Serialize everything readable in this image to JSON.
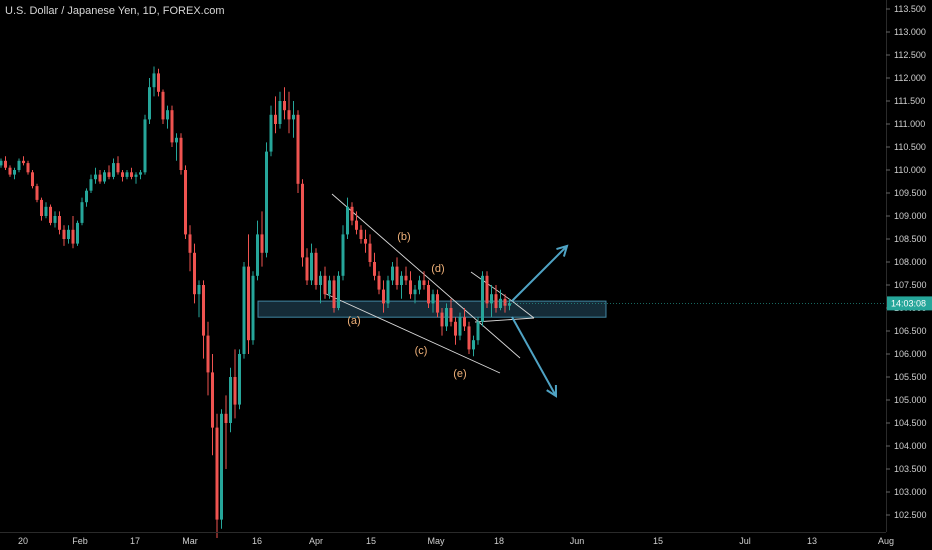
{
  "symbol_title": "U.S. Dollar / Japanese Yen, 1D, FOREX.com",
  "current_price_label": "14:03:08",
  "colors": {
    "background": "#000000",
    "up": "#26a69a",
    "down": "#ef5350",
    "trendline": "#d9d9d9",
    "arrow": "#4fa3c4",
    "zone_fill": "#1c3a4a",
    "zone_stroke": "#4fa3c4",
    "wave_label": "#f0b27a",
    "price_tag": "#26a69a"
  },
  "chart_data": {
    "type": "candlestick",
    "title": "U.S. Dollar / Japanese Yen, 1D, FOREX.com",
    "ylim": [
      102.2,
      113.7
    ],
    "y_ticks": [
      "113.500",
      "113.000",
      "112.500",
      "112.000",
      "111.500",
      "111.000",
      "110.500",
      "110.000",
      "109.500",
      "109.000",
      "108.500",
      "108.000",
      "107.500",
      "107.000",
      "106.500",
      "106.000",
      "105.500",
      "105.000",
      "104.500",
      "104.000",
      "103.500",
      "103.000",
      "102.500"
    ],
    "x_ticks": [
      "20",
      "Feb",
      "17",
      "Mar",
      "16",
      "Apr",
      "15",
      "May",
      "18",
      "Jun",
      "15",
      "Jul",
      "13",
      "Aug"
    ],
    "wave_labels": [
      "(a)",
      "(b)",
      "(c)",
      "(d)",
      "(e)"
    ],
    "support_zone": [
      106.8,
      107.15
    ],
    "candles": [
      [
        110.1,
        110.25,
        110.05,
        110.2
      ],
      [
        110.2,
        110.3,
        110.0,
        110.05
      ],
      [
        110.05,
        110.1,
        109.85,
        109.9
      ],
      [
        109.9,
        110.05,
        109.8,
        110.0
      ],
      [
        110.0,
        110.25,
        109.95,
        110.2
      ],
      [
        110.2,
        110.3,
        110.1,
        110.15
      ],
      [
        110.15,
        110.2,
        109.9,
        109.95
      ],
      [
        109.95,
        110.0,
        109.6,
        109.65
      ],
      [
        109.65,
        109.7,
        109.3,
        109.35
      ],
      [
        109.35,
        109.4,
        108.9,
        109.0
      ],
      [
        109.0,
        109.3,
        108.95,
        109.2
      ],
      [
        109.2,
        109.25,
        108.8,
        108.85
      ],
      [
        108.85,
        109.1,
        108.75,
        109.0
      ],
      [
        109.0,
        109.1,
        108.6,
        108.7
      ],
      [
        108.7,
        108.8,
        108.35,
        108.5
      ],
      [
        108.5,
        108.8,
        108.4,
        108.7
      ],
      [
        108.7,
        109.0,
        108.3,
        108.4
      ],
      [
        108.4,
        108.9,
        108.35,
        108.85
      ],
      [
        108.85,
        109.4,
        108.8,
        109.3
      ],
      [
        109.3,
        109.6,
        109.2,
        109.55
      ],
      [
        109.55,
        109.9,
        109.5,
        109.8
      ],
      [
        109.8,
        110.05,
        109.7,
        109.9
      ],
      [
        109.9,
        110.0,
        109.7,
        109.75
      ],
      [
        109.75,
        110.0,
        109.7,
        109.95
      ],
      [
        109.95,
        110.1,
        109.8,
        109.85
      ],
      [
        109.85,
        110.25,
        109.8,
        110.15
      ],
      [
        110.15,
        110.3,
        109.9,
        109.95
      ],
      [
        109.95,
        110.0,
        109.75,
        109.85
      ],
      [
        109.85,
        110.0,
        109.8,
        109.95
      ],
      [
        109.95,
        110.05,
        109.8,
        109.85
      ],
      [
        109.85,
        109.95,
        109.7,
        109.9
      ],
      [
        109.9,
        110.0,
        109.8,
        109.95
      ],
      [
        109.95,
        111.2,
        109.9,
        111.1
      ],
      [
        111.1,
        112.0,
        111.0,
        111.8
      ],
      [
        111.8,
        112.25,
        111.6,
        112.1
      ],
      [
        112.1,
        112.2,
        111.6,
        111.7
      ],
      [
        111.7,
        111.75,
        111.0,
        111.1
      ],
      [
        111.1,
        111.4,
        110.9,
        111.3
      ],
      [
        111.3,
        111.4,
        110.5,
        110.6
      ],
      [
        110.6,
        110.8,
        110.2,
        110.7
      ],
      [
        110.7,
        110.8,
        109.9,
        110.0
      ],
      [
        110.0,
        110.1,
        108.5,
        108.6
      ],
      [
        108.6,
        108.8,
        107.8,
        108.2
      ],
      [
        108.2,
        108.4,
        107.1,
        107.3
      ],
      [
        107.3,
        107.6,
        106.8,
        107.5
      ],
      [
        107.5,
        107.6,
        105.9,
        106.4
      ],
      [
        106.4,
        106.7,
        105.1,
        105.6
      ],
      [
        105.6,
        106.0,
        103.8,
        104.4
      ],
      [
        104.4,
        104.7,
        102.0,
        102.4
      ],
      [
        102.4,
        104.8,
        102.2,
        104.7
      ],
      [
        104.7,
        105.1,
        103.5,
        104.5
      ],
      [
        104.5,
        105.7,
        104.3,
        105.5
      ],
      [
        105.5,
        106.1,
        104.6,
        104.9
      ],
      [
        104.9,
        106.1,
        104.8,
        106.0
      ],
      [
        106.0,
        108.0,
        105.9,
        107.9
      ],
      [
        107.9,
        108.6,
        106.0,
        106.3
      ],
      [
        106.3,
        107.8,
        106.2,
        107.7
      ],
      [
        107.7,
        108.9,
        107.6,
        108.6
      ],
      [
        108.6,
        109.1,
        107.9,
        108.2
      ],
      [
        108.2,
        110.6,
        108.1,
        110.4
      ],
      [
        110.4,
        111.4,
        110.3,
        111.2
      ],
      [
        111.2,
        111.6,
        110.8,
        111.0
      ],
      [
        111.0,
        111.7,
        110.9,
        111.5
      ],
      [
        111.5,
        111.8,
        111.1,
        111.3
      ],
      [
        111.3,
        111.7,
        110.8,
        111.1
      ],
      [
        111.1,
        111.5,
        110.7,
        111.2
      ],
      [
        111.2,
        111.3,
        109.5,
        109.7
      ],
      [
        109.7,
        109.8,
        107.9,
        108.1
      ],
      [
        108.1,
        108.3,
        107.5,
        107.6
      ],
      [
        107.6,
        108.4,
        107.5,
        108.2
      ],
      [
        108.2,
        108.3,
        107.4,
        107.5
      ],
      [
        107.5,
        107.8,
        107.1,
        107.7
      ],
      [
        107.7,
        107.9,
        107.2,
        107.3
      ],
      [
        107.3,
        107.7,
        107.2,
        107.6
      ],
      [
        107.6,
        107.7,
        106.9,
        107.0
      ],
      [
        107.0,
        107.8,
        106.95,
        107.7
      ],
      [
        107.7,
        108.8,
        107.6,
        108.6
      ],
      [
        108.6,
        109.4,
        108.5,
        109.2
      ],
      [
        109.2,
        109.3,
        108.8,
        108.9
      ],
      [
        108.9,
        109.1,
        108.6,
        108.7
      ],
      [
        108.7,
        108.8,
        108.4,
        108.5
      ],
      [
        108.5,
        108.7,
        108.2,
        108.4
      ],
      [
        108.4,
        108.6,
        107.9,
        108.0
      ],
      [
        108.0,
        108.2,
        107.6,
        107.7
      ],
      [
        107.7,
        107.8,
        107.3,
        107.4
      ],
      [
        107.4,
        107.6,
        106.9,
        107.1
      ],
      [
        107.1,
        107.7,
        107.0,
        107.6
      ],
      [
        107.6,
        108.0,
        107.5,
        107.9
      ],
      [
        107.9,
        108.1,
        107.4,
        107.5
      ],
      [
        107.5,
        107.8,
        107.2,
        107.7
      ],
      [
        107.7,
        107.9,
        107.5,
        107.6
      ],
      [
        107.6,
        107.8,
        107.2,
        107.3
      ],
      [
        107.3,
        107.5,
        107.1,
        107.4
      ],
      [
        107.4,
        107.7,
        107.3,
        107.6
      ],
      [
        107.6,
        107.8,
        107.4,
        107.5
      ],
      [
        107.5,
        107.6,
        107.0,
        107.1
      ],
      [
        107.1,
        107.4,
        106.9,
        107.3
      ],
      [
        107.3,
        107.4,
        106.8,
        106.9
      ],
      [
        106.9,
        107.0,
        106.4,
        106.6
      ],
      [
        106.6,
        107.1,
        106.5,
        107.0
      ],
      [
        107.0,
        107.2,
        106.6,
        106.7
      ],
      [
        106.7,
        106.8,
        106.2,
        106.4
      ],
      [
        106.4,
        106.9,
        106.3,
        106.8
      ],
      [
        106.8,
        107.0,
        106.5,
        106.6
      ],
      [
        106.6,
        106.7,
        106.0,
        106.1
      ],
      [
        106.1,
        106.4,
        105.95,
        106.3
      ],
      [
        106.3,
        106.8,
        106.2,
        106.7
      ],
      [
        106.7,
        107.8,
        106.6,
        107.7
      ],
      [
        107.7,
        107.8,
        107.0,
        107.1
      ],
      [
        107.1,
        107.5,
        106.8,
        107.3
      ],
      [
        107.3,
        107.5,
        106.9,
        107.0
      ],
      [
        107.0,
        107.4,
        106.95,
        107.2
      ],
      [
        107.2,
        107.3,
        106.9,
        107.05
      ],
      [
        107.05,
        107.2,
        106.95,
        107.1
      ]
    ]
  }
}
